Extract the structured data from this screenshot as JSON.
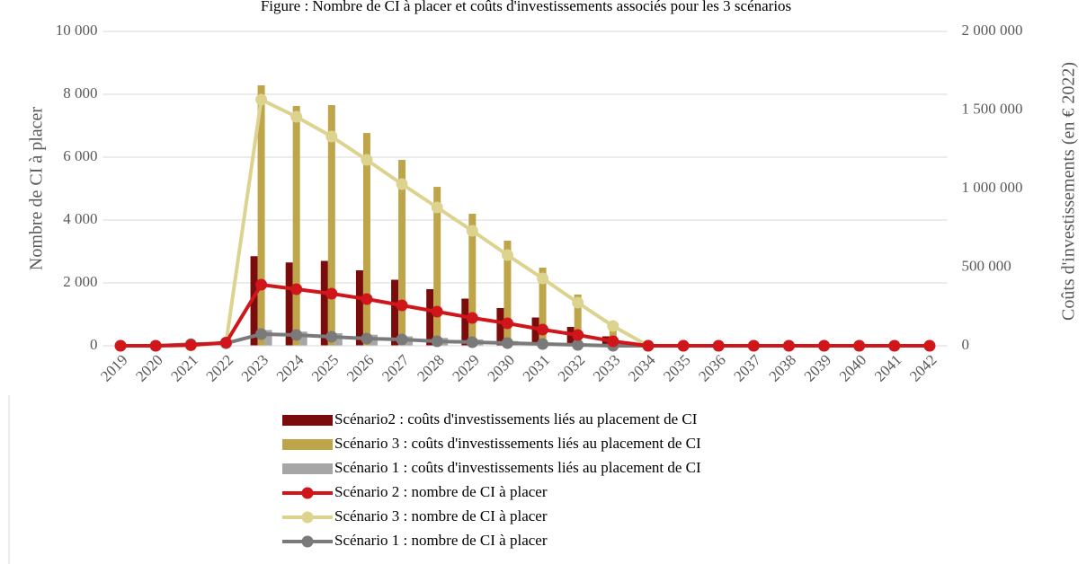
{
  "chart_data": {
    "type": "combo",
    "title": "Figure : Nombre de CI à placer et coûts d'investissements associés pour les 3 scénarios",
    "y_label": "Nombre de CI à placer",
    "y2_label": "Coûts d'investissements (en € 2022)",
    "categories": [
      "2019",
      "2020",
      "2021",
      "2022",
      "2023",
      "2024",
      "2025",
      "2026",
      "2027",
      "2028",
      "2029",
      "2030",
      "2031",
      "2032",
      "2033",
      "2034",
      "2035",
      "2036",
      "2037",
      "2038",
      "2039",
      "2040",
      "2041",
      "2042"
    ],
    "ylim": [
      0,
      10000
    ],
    "yticks": [
      0,
      {
        "value": 2000,
        "label": "2 000"
      },
      {
        "value": 4000,
        "label": "4 000"
      },
      {
        "value": 6000,
        "label": "6 000"
      },
      {
        "value": 8000,
        "label": "8 000"
      },
      {
        "value": 10000,
        "label": "10 000"
      }
    ],
    "y2lim": [
      0,
      2000000
    ],
    "y2ticks": [
      0,
      {
        "value": 500000,
        "label": "500 000"
      },
      {
        "value": 1000000,
        "label": "1 000 000"
      },
      {
        "value": 1500000,
        "label": "1 500 000"
      },
      {
        "value": 2000000,
        "label": "2 000 000"
      }
    ],
    "grid": true,
    "series": [
      {
        "name": "Scénario2 : coûts d'investissements liés au placement de CI",
        "type": "bar",
        "axis": "y2",
        "color": "#7b0c0c",
        "values": [
          0,
          0,
          0,
          0,
          570000,
          530000,
          540000,
          480000,
          420000,
          360000,
          300000,
          240000,
          180000,
          120000,
          60000,
          0,
          0,
          0,
          0,
          0,
          0,
          0,
          0,
          0
        ]
      },
      {
        "name": "Scénario 3 : coûts d'investissements liés au placement de CI",
        "type": "bar",
        "axis": "y2",
        "color": "#bfa54a",
        "values": [
          0,
          0,
          0,
          0,
          1657000,
          1526000,
          1531000,
          1354000,
          1183000,
          1011000,
          840000,
          669000,
          497000,
          326000,
          154000,
          0,
          0,
          0,
          0,
          0,
          0,
          0,
          0,
          0
        ]
      },
      {
        "name": "Scénario 1 : coûts d'investissements liés au placement de CI",
        "type": "bar",
        "axis": "y2",
        "color": "#a6a6a6",
        "values": [
          0,
          0,
          0,
          0,
          100000,
          90000,
          80000,
          70000,
          60000,
          50000,
          40000,
          30000,
          20000,
          10000,
          5000,
          0,
          0,
          0,
          0,
          0,
          0,
          0,
          0,
          0
        ]
      },
      {
        "name": "Scénario 2 : nombre de CI à placer",
        "type": "line",
        "color": "#d0161a",
        "values": [
          0,
          0,
          20,
          100,
          1943,
          1800,
          1657,
          1486,
          1286,
          1086,
          886,
          714,
          514,
          343,
          143,
          0,
          0,
          0,
          0,
          0,
          0,
          0,
          0,
          0
        ]
      },
      {
        "name": "Scénario 3 : nombre de CI à placer",
        "type": "line",
        "color": "#dcd38f",
        "values": [
          0,
          0,
          10,
          100,
          7830,
          7286,
          6657,
          5914,
          5143,
          4400,
          3657,
          2886,
          2143,
          1371,
          629,
          0,
          0,
          0,
          0,
          0,
          0,
          0,
          0,
          0
        ]
      },
      {
        "name": "Scénario 1 : nombre de CI à placer",
        "type": "line",
        "color": "#7a7a7a",
        "values": [
          0,
          0,
          50,
          80,
          371,
          343,
          286,
          229,
          200,
          143,
          114,
          86,
          57,
          29,
          0,
          0,
          0,
          0,
          0,
          0,
          0,
          0,
          0,
          0
        ]
      }
    ]
  }
}
